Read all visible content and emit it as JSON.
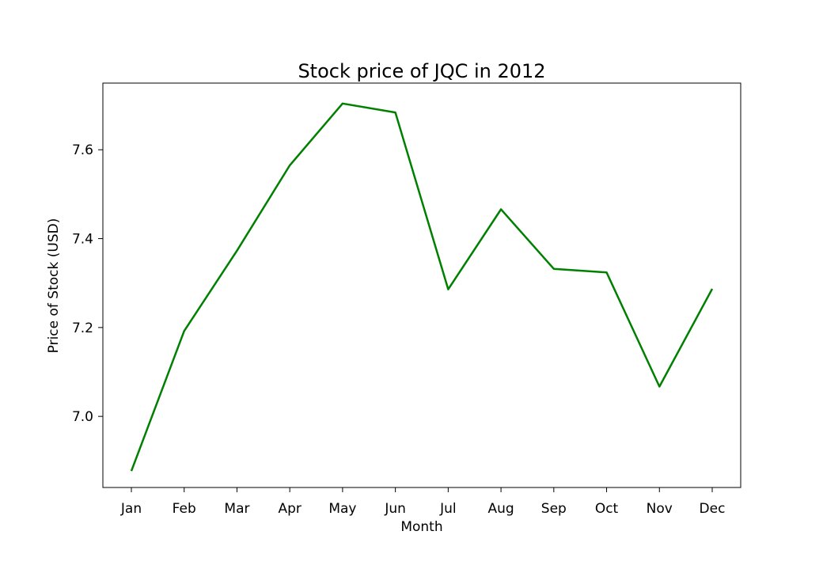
{
  "chart_data": {
    "type": "line",
    "title": "Stock price of JQC in 2012",
    "xlabel": "Month",
    "ylabel": "Price of Stock (USD)",
    "categories": [
      "Jan",
      "Feb",
      "Mar",
      "Apr",
      "May",
      "Jun",
      "Jul",
      "Aug",
      "Sep",
      "Oct",
      "Nov",
      "Dec"
    ],
    "series": [
      {
        "values": [
          6.877,
          7.192,
          7.373,
          7.565,
          7.704,
          7.684,
          7.286,
          7.466,
          7.332,
          7.324,
          7.067,
          7.287
        ]
      }
    ],
    "yticks": [
      7.0,
      7.2,
      7.4,
      7.6
    ],
    "ytick_labels": [
      "7.0",
      "7.2",
      "7.4",
      "7.6"
    ],
    "ylim": [
      6.84,
      7.75
    ],
    "grid": false,
    "legend": false,
    "line_color": "#008000"
  }
}
